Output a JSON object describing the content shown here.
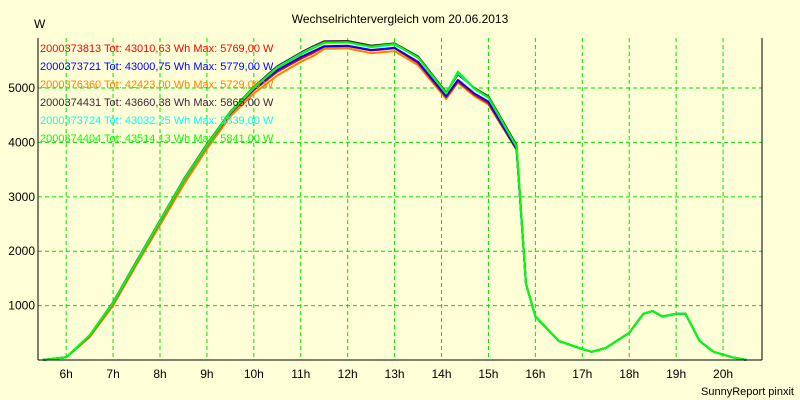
{
  "chart_data": {
    "type": "line",
    "title": "Wechselrichtervergleich vom 20.06.2013",
    "ylabel": "W",
    "xlabel": "",
    "footer": "SunnyReport pinxit",
    "xlim": [
      5.4,
      20.83
    ],
    "ylim": [
      0,
      5920
    ],
    "grid": true,
    "legend_position": "top-left",
    "x_ticks": [
      6,
      7,
      8,
      9,
      10,
      11,
      12,
      13,
      14,
      15,
      16,
      17,
      18,
      19,
      20
    ],
    "x_tick_labels": [
      "6h",
      "7h",
      "8h",
      "9h",
      "10h",
      "11h",
      "12h",
      "13h",
      "14h",
      "15h",
      "16h",
      "17h",
      "18h",
      "19h",
      "20h"
    ],
    "y_ticks": [
      1000,
      2000,
      3000,
      4000,
      5000
    ],
    "y_tick_labels": [
      "1000",
      "2000",
      "3000",
      "4000",
      "5000"
    ],
    "x": [
      5.5,
      6,
      6.5,
      7,
      7.5,
      8,
      8.5,
      9,
      9.5,
      10,
      10.5,
      11,
      11.25,
      11.5,
      12,
      12.5,
      13,
      13.5,
      14.1,
      14.35,
      14.7,
      15,
      15.6,
      15.8,
      16,
      16.5,
      17,
      17.2,
      17.5,
      18,
      18.3,
      18.5,
      18.7,
      19,
      19.2,
      19.5,
      19.8,
      20.2,
      20.5
    ],
    "series": [
      {
        "name": "2000376360",
        "label": "2000376360 Tot: 42423,00 Wh Max: 5729,00 W",
        "color": "#ff8000",
        "values": [
          0,
          50,
          420,
          1000,
          1750,
          2480,
          3220,
          3880,
          4480,
          4900,
          5230,
          5480,
          5580,
          5720,
          5729,
          5640,
          5680,
          5420,
          4800,
          5100,
          4850,
          4700,
          3860,
          1400,
          800,
          350,
          200,
          150,
          220,
          500,
          850,
          900,
          800,
          850,
          850,
          350,
          150,
          50,
          0
        ]
      },
      {
        "name": "2000373813",
        "label": "2000373813 Tot: 43010,63 Wh Max: 5769,00 W",
        "color": "#ff0000",
        "values": [
          0,
          50,
          440,
          1040,
          1790,
          2540,
          3290,
          3940,
          4530,
          4960,
          5300,
          5540,
          5640,
          5760,
          5769,
          5690,
          5730,
          5460,
          4830,
          5120,
          4880,
          4720,
          3870,
          1400,
          800,
          350,
          200,
          150,
          220,
          500,
          850,
          900,
          800,
          850,
          850,
          350,
          150,
          50,
          0
        ]
      },
      {
        "name": "2000373721",
        "label": "2000373721 Tot: 43000,75 Wh Max: 5779,00 W",
        "color": "#0000ff",
        "values": [
          0,
          50,
          445,
          1045,
          1795,
          2545,
          3295,
          3945,
          4540,
          4980,
          5330,
          5570,
          5670,
          5770,
          5779,
          5700,
          5740,
          5480,
          4850,
          5150,
          4900,
          4750,
          3880,
          1400,
          800,
          350,
          200,
          150,
          220,
          500,
          850,
          900,
          800,
          850,
          850,
          350,
          150,
          50,
          0
        ]
      },
      {
        "name": "2000374431",
        "label": "2000374431 Tot: 43660,38 Wh Max: 5865,00 W",
        "color": "#402040",
        "values": [
          0,
          50,
          455,
          1060,
          1815,
          2565,
          3315,
          3965,
          4565,
          5020,
          5400,
          5650,
          5760,
          5860,
          5865,
          5780,
          5820,
          5580,
          4920,
          5250,
          5000,
          4850,
          3950,
          1400,
          800,
          350,
          200,
          150,
          220,
          500,
          850,
          900,
          800,
          850,
          850,
          350,
          150,
          50,
          0
        ]
      },
      {
        "name": "2000373724",
        "label": "2000373724 Tot: 43032,25 Wh Max: 5839,00 W",
        "color": "#00ffff",
        "values": [
          0,
          50,
          450,
          1050,
          1800,
          2550,
          3300,
          3950,
          4550,
          5000,
          5380,
          5630,
          5740,
          5830,
          5839,
          5750,
          5800,
          5560,
          4900,
          5280,
          4980,
          4820,
          3920,
          1400,
          800,
          350,
          200,
          150,
          220,
          500,
          850,
          900,
          800,
          850,
          850,
          350,
          150,
          50,
          0
        ]
      },
      {
        "name": "2000374404",
        "label": "2000374404 Tot: 43514,13 Wh Max: 5841,00 W",
        "color": "#00ff00",
        "values": [
          0,
          50,
          450,
          1050,
          1800,
          2550,
          3300,
          3950,
          4555,
          5010,
          5370,
          5620,
          5730,
          5835,
          5841,
          5760,
          5810,
          5560,
          4900,
          5300,
          4990,
          4830,
          3920,
          1400,
          800,
          350,
          200,
          150,
          220,
          500,
          850,
          900,
          800,
          850,
          850,
          350,
          150,
          50,
          0
        ]
      }
    ],
    "legend_order": [
      1,
      2,
      0,
      3,
      4,
      5
    ]
  }
}
